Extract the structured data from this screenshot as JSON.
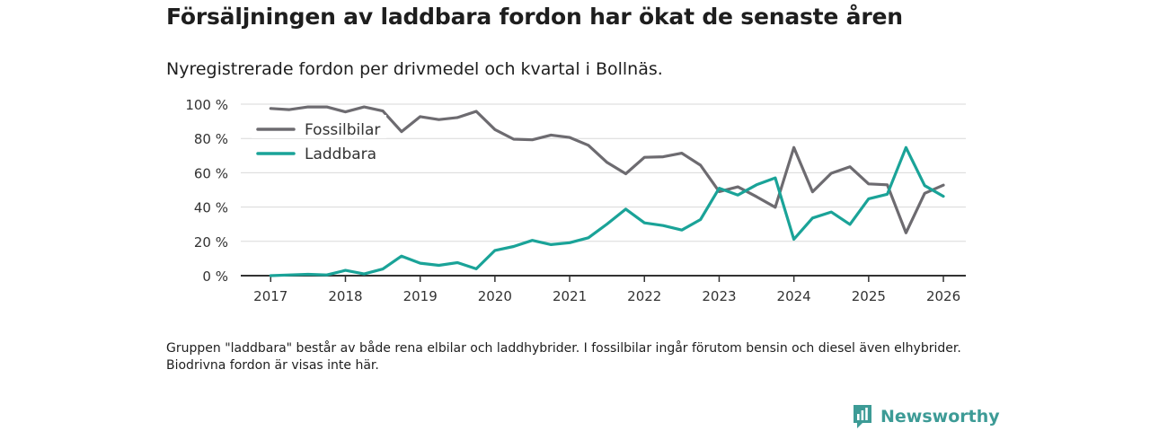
{
  "title": "Försäljningen av laddbara fordon har ökat de senaste åren",
  "subtitle": "Nyregistrerade fordon per drivmedel och kvartal i Bollnäs.",
  "footnote": "Gruppen \"laddbara\" består av både rena elbilar och laddhybrider. I fossilbilar ingår förutom bensin och diesel även elhybrider. Biodrivna fordon är visas inte här.",
  "brand": {
    "name": "Newsworthy",
    "color": "#3d9b96"
  },
  "chart_data": {
    "type": "line",
    "title": "Försäljningen av laddbara fordon har ökat de senaste åren",
    "xlabel": "",
    "ylabel": "",
    "x": [
      2017.0,
      2017.25,
      2017.5,
      2017.75,
      2018.0,
      2018.25,
      2018.5,
      2018.75,
      2019.0,
      2019.25,
      2019.5,
      2019.75,
      2020.0,
      2020.25,
      2020.5,
      2020.75,
      2021.0,
      2021.25,
      2021.5,
      2021.75,
      2022.0,
      2022.25,
      2022.5,
      2022.75,
      2023.0,
      2023.25,
      2023.5,
      2023.75,
      2024.0,
      2024.25,
      2024.5,
      2024.75,
      2025.0,
      2025.25,
      2025.5,
      2025.75,
      2026.0
    ],
    "xlim": [
      2016.6,
      2026.3
    ],
    "ylim": [
      0,
      100
    ],
    "x_ticks": [
      2017,
      2018,
      2019,
      2020,
      2021,
      2022,
      2023,
      2024,
      2025,
      2026
    ],
    "y_ticks": [
      0,
      20,
      40,
      60,
      80,
      100
    ],
    "y_tick_labels": [
      "0 %",
      "20 %",
      "40 %",
      "60 %",
      "80 %",
      "100 %"
    ],
    "grid": true,
    "legend": "top-left",
    "series": [
      {
        "name": "Fossilbilar",
        "color": "#6d6b70",
        "values": [
          97.5,
          96.8,
          98.4,
          98.4,
          95.5,
          98.4,
          96.0,
          84.0,
          92.7,
          91.0,
          92.2,
          95.8,
          85.2,
          79.6,
          79.2,
          82.0,
          80.6,
          76.0,
          66.0,
          59.4,
          69.0,
          69.3,
          71.4,
          64.4,
          49.0,
          51.8,
          46.0,
          39.9,
          74.7,
          48.9,
          59.7,
          63.5,
          53.5,
          53.0,
          25.0,
          48.0,
          52.8
        ]
      },
      {
        "name": "Laddbara",
        "color": "#1aa398",
        "values": [
          0.0,
          0.4,
          0.8,
          0.4,
          3.1,
          1.0,
          3.9,
          11.4,
          7.3,
          6.0,
          7.6,
          4.0,
          14.7,
          17.0,
          20.6,
          18.1,
          19.2,
          22.1,
          30.1,
          38.8,
          30.8,
          29.2,
          26.6,
          32.7,
          51.0,
          47.0,
          53.0,
          57.0,
          21.2,
          33.6,
          37.1,
          29.9,
          44.8,
          47.5,
          74.7,
          52.5,
          46.3
        ]
      }
    ]
  }
}
